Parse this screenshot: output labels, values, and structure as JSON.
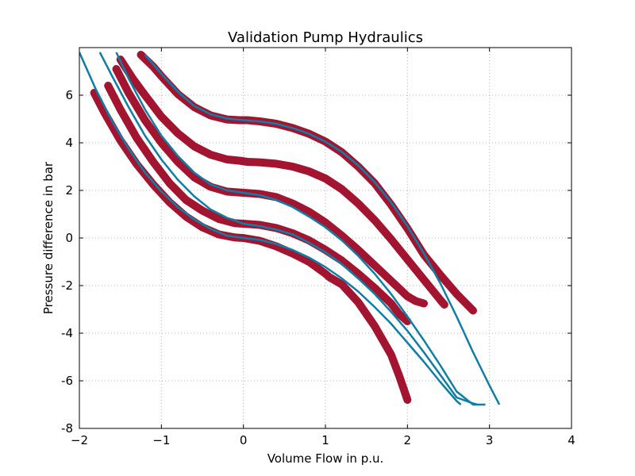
{
  "chart_data": {
    "type": "line",
    "title": "Validation Pump Hydraulics",
    "xlabel": "Volume Flow in p.u.",
    "ylabel": "Pressure difference in bar",
    "xlim": [
      -2,
      4
    ],
    "ylim": [
      -8,
      8
    ],
    "xticks": [
      -2,
      -1,
      0,
      1,
      2,
      3,
      4
    ],
    "xtick_labels": [
      "−2",
      "−1",
      "0",
      "1",
      "2",
      "3",
      "4"
    ],
    "yticks": [
      -8,
      -6,
      -4,
      -2,
      0,
      2,
      4,
      6
    ],
    "ytick_labels": [
      "-8",
      "-6",
      "-4",
      "-2",
      "0",
      "2",
      "4",
      "6"
    ],
    "grid": true,
    "colors": {
      "measured": "#a2142f",
      "model": "#0e7ea6"
    },
    "model_curves": [
      {
        "x": [
          -2.0,
          -1.8,
          -1.6,
          -1.4,
          -1.2,
          -1.0,
          -0.8,
          -0.6,
          -0.4,
          -0.2,
          0.0,
          0.2,
          0.4,
          0.6,
          0.8,
          1.0,
          1.2,
          1.4,
          1.6,
          1.8,
          2.0,
          2.2,
          2.4,
          2.6,
          2.65
        ],
        "y": [
          7.8,
          6.25,
          4.9,
          3.75,
          2.75,
          1.95,
          1.3,
          0.78,
          0.38,
          0.1,
          0.0,
          -0.08,
          -0.25,
          -0.5,
          -0.82,
          -1.22,
          -1.7,
          -2.25,
          -2.9,
          -3.6,
          -4.4,
          -5.2,
          -6.05,
          -6.85,
          -7.0
        ]
      },
      {
        "x": [
          -1.75,
          -1.6,
          -1.4,
          -1.2,
          -1.0,
          -0.8,
          -0.6,
          -0.4,
          -0.2,
          0.0,
          0.2,
          0.4,
          0.6,
          0.8,
          1.0,
          1.2,
          1.4,
          1.6,
          1.8,
          2.0,
          2.2,
          2.4,
          2.6,
          2.8,
          2.85
        ],
        "y": [
          7.8,
          6.8,
          5.5,
          4.3,
          3.3,
          2.45,
          1.75,
          1.2,
          0.85,
          0.6,
          0.5,
          0.35,
          0.15,
          -0.2,
          -0.6,
          -1.1,
          -1.7,
          -2.35,
          -3.1,
          -3.9,
          -4.8,
          -5.75,
          -6.7,
          -6.95,
          -7.0
        ]
      },
      {
        "x": [
          -1.55,
          -1.4,
          -1.2,
          -1.0,
          -0.8,
          -0.6,
          -0.4,
          -0.2,
          0.0,
          0.2,
          0.4,
          0.6,
          0.8,
          1.0,
          1.2,
          1.4,
          1.6,
          1.8,
          2.0,
          2.2,
          2.4,
          2.6,
          2.8,
          2.95
        ],
        "y": [
          7.8,
          6.7,
          5.4,
          4.3,
          3.45,
          2.75,
          2.25,
          2.0,
          1.9,
          1.8,
          1.6,
          1.3,
          0.9,
          0.45,
          -0.1,
          -0.75,
          -1.5,
          -2.35,
          -3.3,
          -4.3,
          -5.35,
          -6.45,
          -7.0,
          -7.0
        ]
      },
      {
        "x": [
          -1.2,
          -1.0,
          -0.8,
          -0.6,
          -0.4,
          -0.2,
          0.0,
          0.2,
          0.4,
          0.6,
          0.8,
          1.0,
          1.2,
          1.4,
          1.6,
          1.8,
          2.0,
          2.2,
          2.4,
          2.6,
          2.8,
          3.0,
          3.12
        ],
        "y": [
          7.7,
          6.9,
          6.15,
          5.55,
          5.2,
          5.02,
          4.95,
          4.9,
          4.8,
          4.62,
          4.38,
          4.05,
          3.62,
          3.05,
          2.35,
          1.5,
          0.5,
          -0.65,
          -1.9,
          -3.3,
          -4.8,
          -6.2,
          -7.0
        ]
      }
    ],
    "measured_series": [
      {
        "x": [
          -1.82,
          -1.7,
          -1.5,
          -1.3,
          -1.1,
          -0.9,
          -0.7,
          -0.5,
          -0.3,
          -0.1,
          0.0,
          0.2,
          0.4,
          0.6,
          0.8,
          1.0,
          1.05,
          1.2,
          1.4,
          1.6,
          1.8,
          1.9,
          2.0
        ],
        "y": [
          6.1,
          5.3,
          4.1,
          3.1,
          2.25,
          1.5,
          0.9,
          0.45,
          0.15,
          0.02,
          0.0,
          -0.12,
          -0.35,
          -0.65,
          -1.0,
          -1.5,
          -1.65,
          -1.95,
          -2.7,
          -3.7,
          -4.9,
          -5.8,
          -6.8
        ]
      },
      {
        "x": [
          -1.65,
          -1.5,
          -1.3,
          -1.1,
          -0.9,
          -0.7,
          -0.5,
          -0.3,
          -0.1,
          0.0,
          0.2,
          0.4,
          0.6,
          0.8,
          1.0,
          1.2,
          1.4,
          1.6,
          1.8,
          1.9,
          2.0
        ],
        "y": [
          6.4,
          5.4,
          4.2,
          3.2,
          2.3,
          1.6,
          1.15,
          0.8,
          0.62,
          0.6,
          0.55,
          0.42,
          0.2,
          -0.1,
          -0.5,
          -0.95,
          -1.5,
          -2.1,
          -2.75,
          -3.2,
          -3.5
        ]
      },
      {
        "x": [
          -1.55,
          -1.4,
          -1.2,
          -1.0,
          -0.8,
          -0.6,
          -0.4,
          -0.2,
          0.0,
          0.2,
          0.4,
          0.6,
          0.8,
          1.0,
          1.2,
          1.4,
          1.6,
          1.8,
          2.0,
          2.1,
          2.2
        ],
        "y": [
          7.1,
          6.1,
          4.95,
          4.0,
          3.2,
          2.55,
          2.15,
          1.95,
          1.9,
          1.85,
          1.72,
          1.45,
          1.1,
          0.65,
          0.1,
          -0.5,
          -1.15,
          -1.8,
          -2.45,
          -2.65,
          -2.75
        ]
      },
      {
        "x": [
          -1.5,
          -1.35,
          -1.2,
          -1.0,
          -0.8,
          -0.6,
          -0.4,
          -0.2,
          -0.05,
          0.05,
          0.2,
          0.4,
          0.6,
          0.8,
          1.0,
          1.2,
          1.4,
          1.6,
          1.8,
          2.0,
          2.2,
          2.4,
          2.45
        ],
        "y": [
          7.5,
          6.7,
          6.0,
          5.1,
          4.4,
          3.85,
          3.5,
          3.3,
          3.25,
          3.2,
          3.18,
          3.12,
          3.0,
          2.8,
          2.5,
          2.05,
          1.45,
          0.75,
          -0.05,
          -0.9,
          -1.75,
          -2.6,
          -2.8
        ]
      },
      {
        "x": [
          -1.25,
          -1.1,
          -1.0,
          -0.8,
          -0.6,
          -0.4,
          -0.2,
          -0.05,
          0.05,
          0.2,
          0.4,
          0.6,
          0.8,
          1.0,
          1.2,
          1.4,
          1.6,
          1.8,
          2.0,
          2.2,
          2.4,
          2.6,
          2.8
        ],
        "y": [
          7.7,
          7.2,
          6.8,
          6.05,
          5.5,
          5.15,
          4.98,
          4.95,
          4.95,
          4.9,
          4.8,
          4.62,
          4.38,
          4.05,
          3.6,
          3.0,
          2.3,
          1.4,
          0.4,
          -0.7,
          -1.55,
          -2.35,
          -3.05
        ]
      }
    ]
  }
}
